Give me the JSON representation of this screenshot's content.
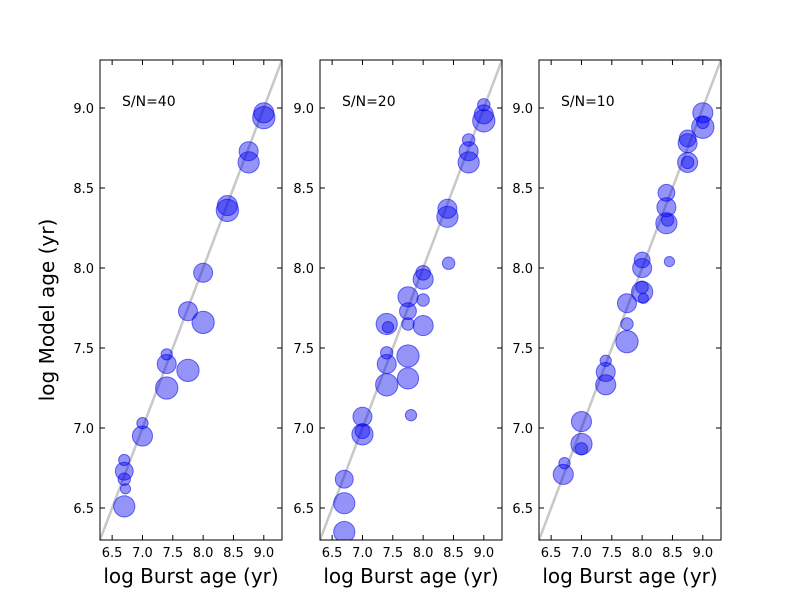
{
  "chart_data": [
    {
      "type": "scatter",
      "title": "S/N=40",
      "xlabel": "log Burst age (yr)",
      "ylabel": "log Model age (yr)",
      "xlim": [
        6.3,
        9.3
      ],
      "ylim": [
        6.3,
        9.3
      ],
      "xticks": [
        "6.5",
        "7.0",
        "7.5",
        "8.0",
        "8.5",
        "9.0"
      ],
      "yticks": [
        "6.5",
        "7.0",
        "7.5",
        "8.0",
        "8.5",
        "9.0"
      ],
      "reference_line": "y = x",
      "points": [
        {
          "x": 6.7,
          "y": 6.73,
          "w": 0.9
        },
        {
          "x": 6.7,
          "y": 6.8,
          "w": 0.3
        },
        {
          "x": 6.7,
          "y": 6.68,
          "w": 0.4
        },
        {
          "x": 6.72,
          "y": 6.62,
          "w": 0.2
        },
        {
          "x": 6.7,
          "y": 6.51,
          "w": 1.2
        },
        {
          "x": 7.0,
          "y": 6.95,
          "w": 1.1
        },
        {
          "x": 7.0,
          "y": 7.03,
          "w": 0.3
        },
        {
          "x": 7.4,
          "y": 7.4,
          "w": 1.0
        },
        {
          "x": 7.4,
          "y": 7.46,
          "w": 0.3
        },
        {
          "x": 7.4,
          "y": 7.25,
          "w": 1.3
        },
        {
          "x": 7.75,
          "y": 7.73,
          "w": 1.0
        },
        {
          "x": 7.75,
          "y": 7.36,
          "w": 1.3
        },
        {
          "x": 8.0,
          "y": 7.97,
          "w": 1.0
        },
        {
          "x": 8.0,
          "y": 7.66,
          "w": 1.3
        },
        {
          "x": 8.4,
          "y": 8.39,
          "w": 1.1
        },
        {
          "x": 8.4,
          "y": 8.36,
          "w": 1.3
        },
        {
          "x": 8.75,
          "y": 8.73,
          "w": 1.0
        },
        {
          "x": 8.75,
          "y": 8.66,
          "w": 1.2
        },
        {
          "x": 9.0,
          "y": 8.97,
          "w": 1.1
        },
        {
          "x": 9.0,
          "y": 8.94,
          "w": 1.3
        }
      ]
    },
    {
      "type": "scatter",
      "title": "S/N=20",
      "xlabel": "log Burst age (yr)",
      "ylabel": "",
      "xlim": [
        6.3,
        9.3
      ],
      "ylim": [
        6.3,
        9.3
      ],
      "xticks": [
        "6.5",
        "7.0",
        "7.5",
        "8.0",
        "8.5",
        "9.0"
      ],
      "yticks": [
        "6.5",
        "7.0",
        "7.5",
        "8.0",
        "8.5",
        "9.0"
      ],
      "reference_line": "y = x",
      "points": [
        {
          "x": 6.7,
          "y": 6.68,
          "w": 0.9
        },
        {
          "x": 6.7,
          "y": 6.53,
          "w": 1.2
        },
        {
          "x": 6.7,
          "y": 6.35,
          "w": 1.2
        },
        {
          "x": 7.0,
          "y": 7.07,
          "w": 1.0
        },
        {
          "x": 7.0,
          "y": 6.98,
          "w": 0.6
        },
        {
          "x": 7.0,
          "y": 6.96,
          "w": 1.2
        },
        {
          "x": 7.4,
          "y": 7.4,
          "w": 1.0
        },
        {
          "x": 7.4,
          "y": 7.47,
          "w": 0.4
        },
        {
          "x": 7.4,
          "y": 7.27,
          "w": 1.3
        },
        {
          "x": 7.4,
          "y": 7.65,
          "w": 1.2
        },
        {
          "x": 7.42,
          "y": 7.63,
          "w": 0.3
        },
        {
          "x": 7.75,
          "y": 7.73,
          "w": 0.8
        },
        {
          "x": 7.75,
          "y": 7.82,
          "w": 1.1
        },
        {
          "x": 7.75,
          "y": 7.65,
          "w": 0.4
        },
        {
          "x": 7.75,
          "y": 7.45,
          "w": 1.3
        },
        {
          "x": 7.75,
          "y": 7.31,
          "w": 1.2
        },
        {
          "x": 7.8,
          "y": 7.08,
          "w": 0.3
        },
        {
          "x": 8.0,
          "y": 7.93,
          "w": 1.1
        },
        {
          "x": 8.0,
          "y": 7.97,
          "w": 0.6
        },
        {
          "x": 8.0,
          "y": 7.8,
          "w": 0.4
        },
        {
          "x": 8.0,
          "y": 7.64,
          "w": 1.1
        },
        {
          "x": 8.4,
          "y": 8.37,
          "w": 1.0
        },
        {
          "x": 8.4,
          "y": 8.32,
          "w": 1.2
        },
        {
          "x": 8.42,
          "y": 8.03,
          "w": 0.4
        },
        {
          "x": 8.75,
          "y": 8.73,
          "w": 1.0
        },
        {
          "x": 8.75,
          "y": 8.8,
          "w": 0.4
        },
        {
          "x": 8.75,
          "y": 8.66,
          "w": 1.2
        },
        {
          "x": 9.0,
          "y": 8.96,
          "w": 1.0
        },
        {
          "x": 9.0,
          "y": 9.02,
          "w": 0.4
        },
        {
          "x": 9.0,
          "y": 8.92,
          "w": 1.3
        }
      ]
    },
    {
      "type": "scatter",
      "title": "S/N=10",
      "xlabel": "log Burst age (yr)",
      "ylabel": "",
      "xlim": [
        6.3,
        9.3
      ],
      "ylim": [
        6.3,
        9.3
      ],
      "xticks": [
        "6.5",
        "7.0",
        "7.5",
        "8.0",
        "8.5",
        "9.0"
      ],
      "yticks": [
        "6.5",
        "7.0",
        "7.5",
        "8.0",
        "8.5",
        "9.0"
      ],
      "reference_line": "y = x",
      "points": [
        {
          "x": 6.7,
          "y": 6.71,
          "w": 1.1
        },
        {
          "x": 6.72,
          "y": 6.78,
          "w": 0.3
        },
        {
          "x": 7.0,
          "y": 7.04,
          "w": 1.1
        },
        {
          "x": 7.0,
          "y": 6.9,
          "w": 1.2
        },
        {
          "x": 7.0,
          "y": 6.87,
          "w": 0.4
        },
        {
          "x": 7.4,
          "y": 7.35,
          "w": 1.0
        },
        {
          "x": 7.4,
          "y": 7.27,
          "w": 1.1
        },
        {
          "x": 7.4,
          "y": 7.42,
          "w": 0.3
        },
        {
          "x": 7.75,
          "y": 7.78,
          "w": 1.0
        },
        {
          "x": 7.75,
          "y": 7.65,
          "w": 0.4
        },
        {
          "x": 7.75,
          "y": 7.54,
          "w": 1.3
        },
        {
          "x": 8.0,
          "y": 8.0,
          "w": 1.0
        },
        {
          "x": 8.0,
          "y": 8.05,
          "w": 0.7
        },
        {
          "x": 8.0,
          "y": 7.88,
          "w": 0.4
        },
        {
          "x": 8.0,
          "y": 7.85,
          "w": 1.2
        },
        {
          "x": 8.02,
          "y": 7.81,
          "w": 0.2
        },
        {
          "x": 8.4,
          "y": 8.38,
          "w": 1.0
        },
        {
          "x": 8.4,
          "y": 8.47,
          "w": 0.8
        },
        {
          "x": 8.4,
          "y": 8.28,
          "w": 1.2
        },
        {
          "x": 8.42,
          "y": 8.3,
          "w": 0.4
        },
        {
          "x": 8.45,
          "y": 8.04,
          "w": 0.2
        },
        {
          "x": 8.75,
          "y": 8.78,
          "w": 1.0
        },
        {
          "x": 8.75,
          "y": 8.81,
          "w": 0.8
        },
        {
          "x": 8.75,
          "y": 8.66,
          "w": 1.1
        },
        {
          "x": 8.75,
          "y": 8.66,
          "w": 0.4
        },
        {
          "x": 9.0,
          "y": 8.97,
          "w": 1.1
        },
        {
          "x": 9.0,
          "y": 8.91,
          "w": 0.4
        },
        {
          "x": 9.0,
          "y": 8.88,
          "w": 1.3
        }
      ]
    }
  ],
  "colors": {
    "marker": "#0000ee",
    "reference_line": "#c8c8c8",
    "axes": "#000000"
  }
}
